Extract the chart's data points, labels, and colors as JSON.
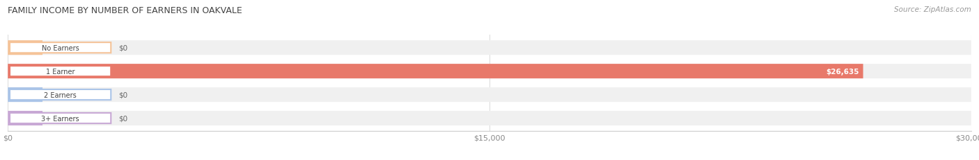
{
  "title": "FAMILY INCOME BY NUMBER OF EARNERS IN OAKVALE",
  "source": "Source: ZipAtlas.com",
  "categories": [
    "No Earners",
    "1 Earner",
    "2 Earners",
    "3+ Earners"
  ],
  "values": [
    0,
    26635,
    0,
    0
  ],
  "bar_colors": [
    "#f5c398",
    "#e8796a",
    "#aac4e8",
    "#c8a8d5"
  ],
  "bar_bg_color": "#f0f0f0",
  "xlim": [
    0,
    30000
  ],
  "xticks": [
    0,
    15000,
    30000
  ],
  "xticklabels": [
    "$0",
    "$15,000",
    "$30,000"
  ],
  "bar_height": 0.62,
  "figsize": [
    14.06,
    2.32
  ],
  "dpi": 100
}
